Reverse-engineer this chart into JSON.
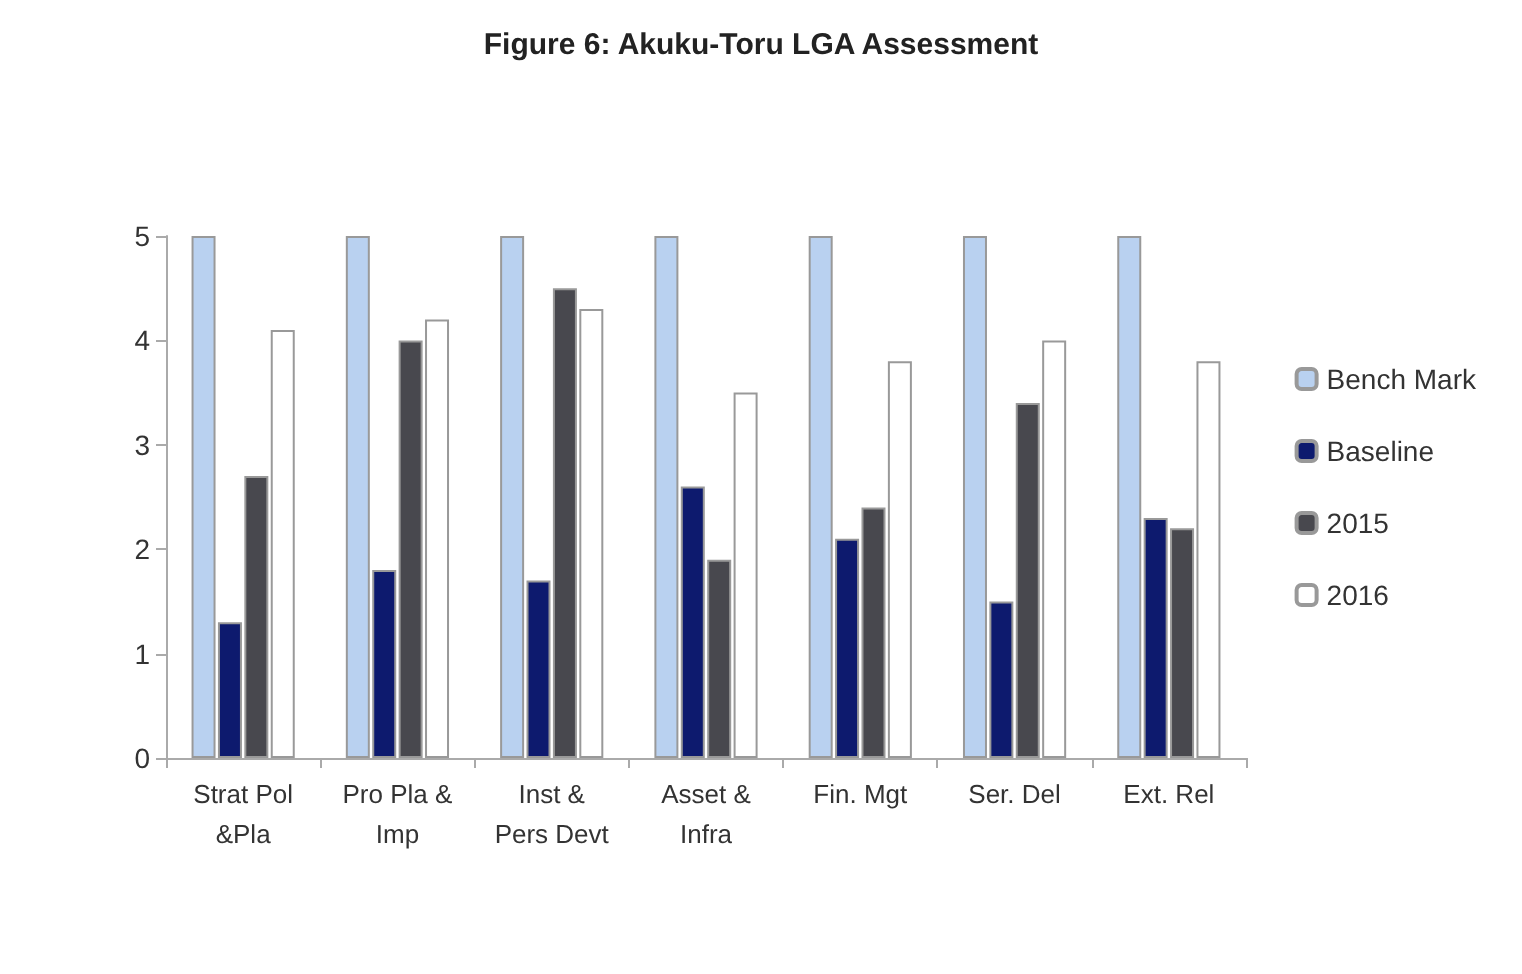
{
  "chart_data": {
    "type": "bar",
    "title": "Figure 6: Akuku-Toru LGA Assessment",
    "categories": [
      "Strat Pol\n&Pla",
      "Pro Pla &\nImp",
      "Inst &\nPers Devt",
      "Asset &\nInfra",
      "Fin. Mgt",
      "Ser. Del",
      "Ext. Rel"
    ],
    "series": [
      {
        "name": "Bench Mark",
        "color": "#b9d1f0",
        "values": [
          5,
          5,
          5,
          5,
          5,
          5,
          5
        ]
      },
      {
        "name": "Baseline",
        "color": "#0d1a6e",
        "values": [
          1.3,
          1.8,
          1.7,
          2.6,
          2.1,
          1.5,
          2.3
        ]
      },
      {
        "name": "2015",
        "color": "#48484e",
        "values": [
          2.7,
          4.0,
          4.5,
          1.9,
          2.4,
          3.4,
          2.2
        ]
      },
      {
        "name": "2016",
        "color": "#ffffff",
        "values": [
          4.1,
          4.2,
          4.3,
          3.5,
          3.8,
          4.0,
          3.8
        ]
      }
    ],
    "ylim": [
      0,
      5
    ],
    "yticks": [
      0,
      1,
      2,
      3,
      4,
      5
    ],
    "grid": false,
    "legend": "right"
  }
}
